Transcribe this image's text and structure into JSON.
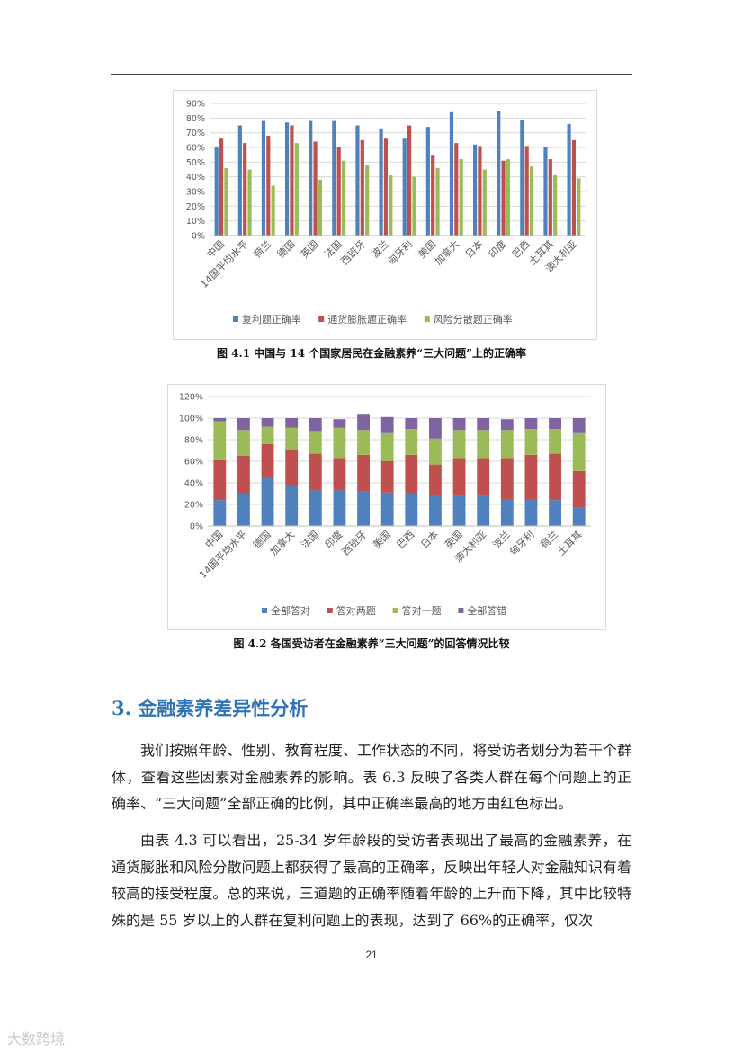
{
  "chart_data": [
    {
      "type": "bar",
      "categories": [
        "中国",
        "14国平均水平",
        "荷兰",
        "德国",
        "英国",
        "法国",
        "西班牙",
        "波兰",
        "匈牙利",
        "美国",
        "加拿大",
        "日本",
        "印度",
        "巴西",
        "土耳其",
        "澳大利亚"
      ],
      "series": [
        {
          "name": "复利题正确率",
          "color": "#4f81bd",
          "values": [
            60,
            75,
            78,
            77,
            78,
            78,
            75,
            73,
            66,
            74,
            84,
            62,
            85,
            79,
            60,
            76
          ]
        },
        {
          "name": "通货膨胀题正确率",
          "color": "#c0504d",
          "values": [
            66,
            63,
            68,
            75,
            64,
            60,
            65,
            66,
            75,
            55,
            63,
            61,
            51,
            61,
            52,
            65
          ]
        },
        {
          "name": "风险分散题正确率",
          "color": "#9bbb59",
          "values": [
            46,
            45,
            34,
            63,
            38,
            51,
            48,
            41,
            40,
            46,
            52,
            45,
            52,
            47,
            41,
            39
          ]
        }
      ],
      "ylim": [
        0,
        90
      ],
      "yticks": [
        "0%",
        "10%",
        "20%",
        "30%",
        "40%",
        "50%",
        "60%",
        "70%",
        "80%",
        "90%"
      ],
      "grid": true,
      "legend": "bottom",
      "caption": "图 4.1 中国与 14 个国家居民在金融素养“三大问题”上的正确率"
    },
    {
      "type": "bar",
      "stacked": true,
      "categories": [
        "中国",
        "14国平均水平",
        "德国",
        "加拿大",
        "法国",
        "印度",
        "西班牙",
        "美国",
        "巴西",
        "日本",
        "英国",
        "澳大利亚",
        "波兰",
        "匈牙利",
        "荷兰",
        "土耳其"
      ],
      "series": [
        {
          "name": "全部答对",
          "color": "#4f81bd",
          "values": [
            24,
            30,
            45,
            37,
            33,
            33,
            32,
            31,
            30,
            29,
            28,
            28,
            25,
            25,
            24,
            17
          ]
        },
        {
          "name": "答对两题",
          "color": "#c0504d",
          "values": [
            37,
            35,
            31,
            33,
            34,
            30,
            34,
            29,
            36,
            28,
            35,
            35,
            38,
            41,
            43,
            34
          ]
        },
        {
          "name": "答对一题",
          "color": "#9bbb59",
          "values": [
            36,
            24,
            16,
            21,
            21,
            28,
            23,
            26,
            24,
            24,
            26,
            26,
            26,
            24,
            23,
            35
          ]
        },
        {
          "name": "全部答错",
          "color": "#8064a2",
          "values": [
            3,
            11,
            8,
            9,
            12,
            8,
            15,
            15,
            10,
            19,
            11,
            11,
            10,
            10,
            10,
            14
          ]
        }
      ],
      "ylim": [
        0,
        120
      ],
      "yticks": [
        "0%",
        "20%",
        "40%",
        "60%",
        "80%",
        "100%",
        "120%"
      ],
      "grid": true,
      "legend": "bottom",
      "caption": "图 4.2 各国受访者在金融素养“三大问题”的回答情况比较"
    }
  ],
  "section": {
    "title": "3. 金融素养差异性分析",
    "paragraphs": [
      "我们按照年龄、性别、教育程度、工作状态的不同，将受访者划分为若干个群体，查看这些因素对金融素养的影响。表 6.3 反映了各类人群在每个问题上的正确率、“三大问题”全部正确的比例，其中正确率最高的地方由红色标出。",
      "由表 4.3 可以看出，25-34 岁年龄段的受访者表现出了最高的金融素养，在通货膨胀和风险分散问题上都获得了最高的正确率，反映出年轻人对金融知识有着较高的接受程度。总的来说，三道题的正确率随着年龄的上升而下降，其中比较特殊的是 55 岁以上的人群在复利问题上的表现，达到了 66%的正确率，仅次"
    ]
  },
  "page_number": "21",
  "watermark": "大数跨境"
}
